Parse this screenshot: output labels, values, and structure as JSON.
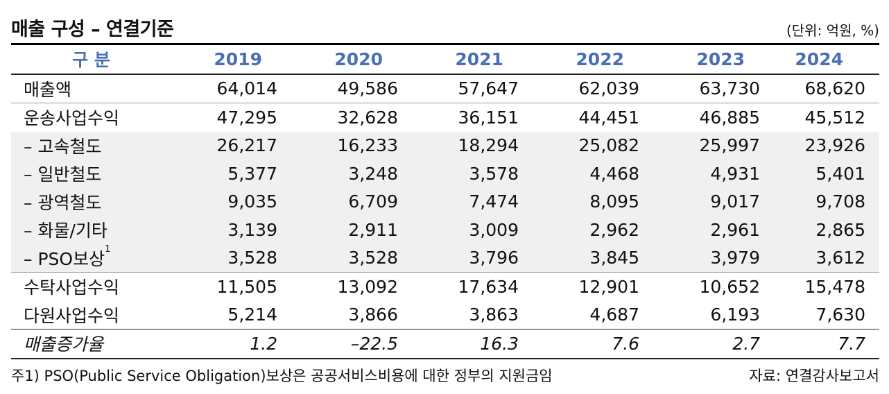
{
  "title": "매출 구성 – 연결기준",
  "unit": "(단위: 억원, %)",
  "header": {
    "label": "구 분",
    "years": [
      "2019",
      "2020",
      "2021",
      "2022",
      "2023",
      "2024"
    ]
  },
  "rows": [
    {
      "label": "매출액",
      "values": [
        "64,014",
        "49,586",
        "57,647",
        "62,039",
        "63,730",
        "68,620"
      ]
    },
    {
      "label": "운송사업수익",
      "values": [
        "47,295",
        "32,628",
        "36,151",
        "44,451",
        "46,885",
        "45,512"
      ]
    },
    {
      "label": "– 고속철도",
      "values": [
        "26,217",
        "16,233",
        "18,294",
        "25,082",
        "25,997",
        "23,926"
      ]
    },
    {
      "label": "– 일반철도",
      "values": [
        "5,377",
        "3,248",
        "3,578",
        "4,468",
        "4,931",
        "5,401"
      ]
    },
    {
      "label": "– 광역철도",
      "values": [
        "9,035",
        "6,709",
        "7,474",
        "8,095",
        "9,017",
        "9,708"
      ]
    },
    {
      "label": "– 화물/기타",
      "values": [
        "3,139",
        "2,911",
        "3,009",
        "2,962",
        "2,961",
        "2,865"
      ]
    },
    {
      "label": "– PSO보상",
      "sup": "1",
      "values": [
        "3,528",
        "3,528",
        "3,796",
        "3,845",
        "3,979",
        "3,612"
      ]
    },
    {
      "label": "수탁사업수익",
      "values": [
        "11,505",
        "13,092",
        "17,634",
        "12,901",
        "10,652",
        "15,478"
      ]
    },
    {
      "label": "다원사업수익",
      "values": [
        "5,214",
        "3,866",
        "3,863",
        "4,687",
        "6,193",
        "7,630"
      ]
    }
  ],
  "growth": {
    "label": "매출증가율",
    "values": [
      "1.2",
      "–22.5",
      "16.3",
      "7.6",
      "2.7",
      "7.7"
    ]
  },
  "footnote": "주1) PSO(Public Service Obligation)보상은 공공서비스비용에 대한 정부의 지원금임",
  "source": "자료: 연결감사보고서"
}
